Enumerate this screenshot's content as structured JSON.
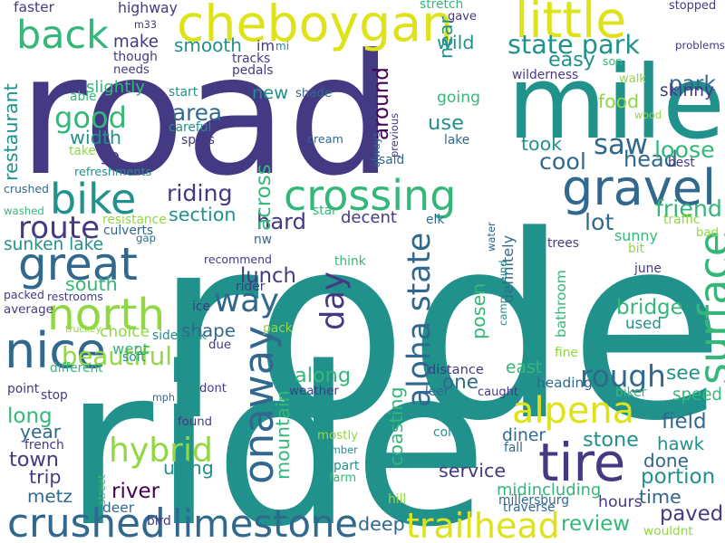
{
  "palette": {
    "c1": "#443a83",
    "c2": "#31688e",
    "c3": "#21918c",
    "c4": "#35b779",
    "c5": "#90d743",
    "c6": "#dde318",
    "c7": "#440154"
  },
  "words": [
    {
      "text": "rode",
      "color": "c3"
    },
    {
      "text": "road",
      "color": "c1"
    },
    {
      "text": "ride",
      "color": "c3"
    },
    {
      "text": "mile",
      "color": "c3"
    },
    {
      "text": "cheboygan",
      "color": "c6"
    },
    {
      "text": "back",
      "color": "c4"
    },
    {
      "text": "little",
      "color": "c6"
    },
    {
      "text": "state park",
      "color": "c3"
    },
    {
      "text": "crossing",
      "color": "c4"
    },
    {
      "text": "gravel",
      "color": "c2"
    },
    {
      "text": "bike",
      "color": "c3"
    },
    {
      "text": "great",
      "color": "c2"
    },
    {
      "text": "north",
      "color": "c5"
    },
    {
      "text": "nice",
      "color": "c2"
    },
    {
      "text": "beautiful",
      "color": "c5"
    },
    {
      "text": "alpena",
      "color": "c6"
    },
    {
      "text": "tire",
      "color": "c1"
    },
    {
      "text": "surface",
      "color": "c4"
    },
    {
      "text": "aloha state",
      "color": "c2"
    },
    {
      "text": "onaway",
      "color": "c2"
    },
    {
      "text": "crushed",
      "color": "c2"
    },
    {
      "text": "limestone",
      "color": "c2"
    },
    {
      "text": "trailhead",
      "color": "c6"
    },
    {
      "text": "day",
      "color": "c1"
    },
    {
      "text": "way",
      "color": "c2"
    },
    {
      "text": "rough",
      "color": "c2"
    },
    {
      "text": "paved",
      "color": "c1"
    },
    {
      "text": "hybrid",
      "color": "c5"
    },
    {
      "text": "route",
      "color": "c1"
    },
    {
      "text": "good",
      "color": "c4"
    },
    {
      "text": "saw",
      "color": "c2"
    },
    {
      "text": "cool",
      "color": "c2"
    },
    {
      "text": "head",
      "color": "c2"
    },
    {
      "text": "loose",
      "color": "c4"
    },
    {
      "text": "friend",
      "color": "c4"
    },
    {
      "text": "park",
      "color": "c2"
    },
    {
      "text": "skinny",
      "color": "c1"
    },
    {
      "text": "easy",
      "color": "c3"
    },
    {
      "text": "smooth",
      "color": "c3"
    },
    {
      "text": "make",
      "color": "c1"
    },
    {
      "text": "highway",
      "color": "c1"
    },
    {
      "text": "faster",
      "color": "c1"
    },
    {
      "text": "slightly",
      "color": "c4"
    },
    {
      "text": "width",
      "color": "c3"
    },
    {
      "text": "go",
      "color": "c1"
    },
    {
      "text": "restaurant",
      "color": "c3"
    },
    {
      "text": "area",
      "color": "c2"
    },
    {
      "text": "riding",
      "color": "c1"
    },
    {
      "text": "section",
      "color": "c3"
    },
    {
      "text": "hard",
      "color": "c1"
    },
    {
      "text": "across",
      "color": "c4"
    },
    {
      "text": "new",
      "color": "c3"
    },
    {
      "text": "around",
      "color": "c7"
    },
    {
      "text": "use",
      "color": "c3"
    },
    {
      "text": "going",
      "color": "c4"
    },
    {
      "text": "near",
      "color": "c3"
    },
    {
      "text": "wild",
      "color": "c3"
    },
    {
      "text": "food",
      "color": "c5"
    },
    {
      "text": "took",
      "color": "c3"
    },
    {
      "text": "lot",
      "color": "c2"
    },
    {
      "text": "sunny",
      "color": "c4"
    },
    {
      "text": "decent",
      "color": "c1"
    },
    {
      "text": "sunken lake",
      "color": "c3"
    },
    {
      "text": "south",
      "color": "c4"
    },
    {
      "text": "lunch",
      "color": "c1"
    },
    {
      "text": "recommend",
      "color": "c1"
    },
    {
      "text": "shape",
      "color": "c2"
    },
    {
      "text": "posen",
      "color": "c4"
    },
    {
      "text": "bathroom",
      "color": "c4"
    },
    {
      "text": "bridge",
      "color": "c4"
    },
    {
      "text": "used",
      "color": "c3"
    },
    {
      "text": "choice",
      "color": "c5"
    },
    {
      "text": "went",
      "color": "c4"
    },
    {
      "text": "along",
      "color": "c4"
    },
    {
      "text": "one",
      "color": "c2"
    },
    {
      "text": "distance",
      "color": "c1"
    },
    {
      "text": "east",
      "color": "c4"
    },
    {
      "text": "heading",
      "color": "c2"
    },
    {
      "text": "see",
      "color": "c3"
    },
    {
      "text": "speed",
      "color": "c4"
    },
    {
      "text": "field",
      "color": "c2"
    },
    {
      "text": "hawk",
      "color": "c3"
    },
    {
      "text": "done",
      "color": "c2"
    },
    {
      "text": "portion",
      "color": "c3"
    },
    {
      "text": "time",
      "color": "c2"
    },
    {
      "text": "stone",
      "color": "c3"
    },
    {
      "text": "long",
      "color": "c4"
    },
    {
      "text": "year",
      "color": "c2"
    },
    {
      "text": "town",
      "color": "c1"
    },
    {
      "text": "trip",
      "color": "c1"
    },
    {
      "text": "metz",
      "color": "c2"
    },
    {
      "text": "river",
      "color": "c7"
    },
    {
      "text": "using",
      "color": "c3"
    },
    {
      "text": "mountain",
      "color": "c4"
    },
    {
      "text": "coasting",
      "color": "c4"
    },
    {
      "text": "service",
      "color": "c1"
    },
    {
      "text": "midincluding",
      "color": "c4"
    },
    {
      "text": "diner",
      "color": "c2"
    },
    {
      "text": "deep",
      "color": "c2"
    },
    {
      "text": "review",
      "color": "c4"
    },
    {
      "text": "hours",
      "color": "c1"
    },
    {
      "text": "definitely",
      "color": "c2"
    },
    {
      "text": "stopped",
      "color": "c1"
    },
    {
      "text": "son",
      "color": "c4"
    },
    {
      "text": "problems",
      "color": "c1"
    },
    {
      "text": "wilderness",
      "color": "c1"
    },
    {
      "text": "walk",
      "color": "c5"
    },
    {
      "text": "wood",
      "color": "c5"
    },
    {
      "text": "best",
      "color": "c1"
    },
    {
      "text": "traffic",
      "color": "c5"
    },
    {
      "text": "bad",
      "color": "c5"
    },
    {
      "text": "trees",
      "color": "c1"
    },
    {
      "text": "bit",
      "color": "c5"
    },
    {
      "text": "june",
      "color": "c1"
    },
    {
      "text": "stretch",
      "color": "c4"
    },
    {
      "text": "gave",
      "color": "c1"
    },
    {
      "text": "m33",
      "color": "c1"
    },
    {
      "text": "though",
      "color": "c1"
    },
    {
      "text": "needs",
      "color": "c1"
    },
    {
      "text": "tracks",
      "color": "c1"
    },
    {
      "text": "pedals",
      "color": "c1"
    },
    {
      "text": "im",
      "color": "c1"
    },
    {
      "text": "mi",
      "color": "c3"
    },
    {
      "text": "able",
      "color": "c4"
    },
    {
      "text": "start",
      "color": "c3"
    },
    {
      "text": "shade",
      "color": "c2"
    },
    {
      "text": "careful",
      "color": "c3"
    },
    {
      "text": "spots",
      "color": "c1"
    },
    {
      "text": "cream",
      "color": "c2"
    },
    {
      "text": "always",
      "color": "c2"
    },
    {
      "text": "previous",
      "color": "c1"
    },
    {
      "text": "said",
      "color": "c2"
    },
    {
      "text": "lake",
      "color": "c2"
    },
    {
      "text": "take",
      "color": "c5"
    },
    {
      "text": "refreshments",
      "color": "c3"
    },
    {
      "text": "crushed",
      "color": "c2"
    },
    {
      "text": "washed",
      "color": "c4"
    },
    {
      "text": "resistance",
      "color": "c5"
    },
    {
      "text": "culverts",
      "color": "c2"
    },
    {
      "text": "gap",
      "color": "c2"
    },
    {
      "text": "star",
      "color": "c4"
    },
    {
      "text": "elk",
      "color": "c2"
    },
    {
      "text": "water",
      "color": "c2"
    },
    {
      "text": "nw",
      "color": "c2"
    },
    {
      "text": "think",
      "color": "c4"
    },
    {
      "text": "rider",
      "color": "c1"
    },
    {
      "text": "ice",
      "color": "c1"
    },
    {
      "text": "pack",
      "color": "c5"
    },
    {
      "text": "campground",
      "color": "c3"
    },
    {
      "text": "packed",
      "color": "c1"
    },
    {
      "text": "restrooms",
      "color": "c1"
    },
    {
      "text": "average",
      "color": "c1"
    },
    {
      "text": "truckey",
      "color": "c5"
    },
    {
      "text": "soft",
      "color": "c3"
    },
    {
      "text": "sidewalk",
      "color": "c3"
    },
    {
      "text": "due",
      "color": "c1"
    },
    {
      "text": "different",
      "color": "c4"
    },
    {
      "text": "fine",
      "color": "c5"
    },
    {
      "text": "point",
      "color": "c1"
    },
    {
      "text": "stop",
      "color": "c1"
    },
    {
      "text": "mph",
      "color": "c2"
    },
    {
      "text": "dont",
      "color": "c1"
    },
    {
      "text": "weather",
      "color": "c1"
    },
    {
      "text": "leer",
      "color": "c2"
    },
    {
      "text": "caught",
      "color": "c1"
    },
    {
      "text": "biker",
      "color": "c4"
    },
    {
      "text": "found",
      "color": "c1"
    },
    {
      "text": "french",
      "color": "c1"
    },
    {
      "text": "street",
      "color": "c4"
    },
    {
      "text": "deer",
      "color": "c2"
    },
    {
      "text": "bird",
      "color": "c1"
    },
    {
      "text": "mostly",
      "color": "c5"
    },
    {
      "text": "number",
      "color": "c3"
    },
    {
      "text": "part",
      "color": "c3"
    },
    {
      "text": "farm",
      "color": "c4"
    },
    {
      "text": "hill",
      "color": "c5"
    },
    {
      "text": "color",
      "color": "c3"
    },
    {
      "text": "fall",
      "color": "c2"
    },
    {
      "text": "millersburg",
      "color": "c2"
    },
    {
      "text": "traverse",
      "color": "c2"
    },
    {
      "text": "wouldnt",
      "color": "c5"
    }
  ]
}
